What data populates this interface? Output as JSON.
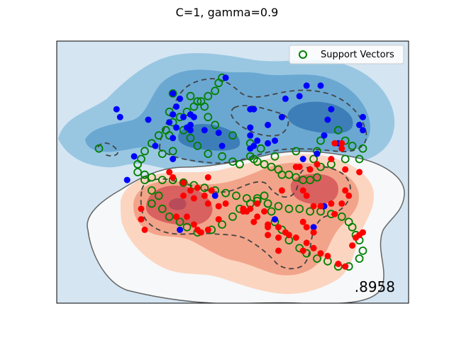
{
  "chart_data": {
    "type": "scatter",
    "title": "C=1, gamma=0.9",
    "score_text": ".8958",
    "legend": {
      "label": "Support Vectors",
      "position": "top-right"
    },
    "xlim": [
      0,
      100
    ],
    "ylim": [
      0,
      100
    ],
    "grid": false,
    "colors": {
      "class0": "#0000ff",
      "class1": "#ff0000",
      "support": "#007f00"
    },
    "series": [
      {
        "name": "class-blue",
        "points": [
          [
            48,
            86
          ],
          [
            33,
            80
          ],
          [
            34,
            75
          ],
          [
            35,
            78
          ],
          [
            33,
            72
          ],
          [
            17,
            74
          ],
          [
            18,
            71
          ],
          [
            26,
            70
          ],
          [
            32,
            69
          ],
          [
            36,
            71
          ],
          [
            38,
            72
          ],
          [
            39,
            71
          ],
          [
            38,
            68
          ],
          [
            34,
            67
          ],
          [
            33,
            63
          ],
          [
            37,
            67
          ],
          [
            38,
            66
          ],
          [
            42,
            66
          ],
          [
            46,
            65
          ],
          [
            47,
            60
          ],
          [
            55,
            74
          ],
          [
            56,
            74
          ],
          [
            55,
            67
          ],
          [
            55,
            64
          ],
          [
            55,
            59
          ],
          [
            56,
            60
          ],
          [
            57,
            62
          ],
          [
            60,
            61
          ],
          [
            62,
            62
          ],
          [
            60,
            68
          ],
          [
            64,
            71
          ],
          [
            65,
            78
          ],
          [
            69,
            79
          ],
          [
            71,
            83
          ],
          [
            75,
            83
          ],
          [
            78,
            74
          ],
          [
            77,
            70
          ],
          [
            76,
            64
          ],
          [
            70,
            55
          ],
          [
            74,
            57
          ],
          [
            80,
            61
          ],
          [
            87,
            66
          ],
          [
            86,
            68
          ],
          [
            87,
            71
          ],
          [
            22,
            56
          ],
          [
            28,
            60
          ],
          [
            33,
            55
          ],
          [
            20,
            47
          ],
          [
            45,
            41
          ],
          [
            35,
            28
          ],
          [
            62,
            32
          ],
          [
            73,
            29
          ],
          [
            76,
            37
          ]
        ]
      },
      {
        "name": "class-red",
        "points": [
          [
            43,
            48
          ],
          [
            32,
            50
          ],
          [
            33,
            48
          ],
          [
            36,
            46
          ],
          [
            40,
            44
          ],
          [
            38,
            43
          ],
          [
            36,
            41
          ],
          [
            39,
            40
          ],
          [
            42,
            41
          ],
          [
            44,
            43
          ],
          [
            43,
            38
          ],
          [
            46,
            37
          ],
          [
            48,
            38
          ],
          [
            55,
            36
          ],
          [
            57,
            38
          ],
          [
            59,
            35
          ],
          [
            53,
            35
          ],
          [
            56,
            31
          ],
          [
            60,
            30
          ],
          [
            60,
            26
          ],
          [
            63,
            25
          ],
          [
            66,
            26
          ],
          [
            63,
            20
          ],
          [
            70,
            43
          ],
          [
            71,
            41
          ],
          [
            73,
            37
          ],
          [
            75,
            37
          ],
          [
            78,
            38
          ],
          [
            79,
            34
          ],
          [
            70,
            31
          ],
          [
            71,
            29
          ],
          [
            73,
            27
          ],
          [
            64,
            43
          ],
          [
            68,
            52
          ],
          [
            69,
            52
          ],
          [
            72,
            51
          ],
          [
            74,
            53
          ],
          [
            78,
            55
          ],
          [
            79,
            61
          ],
          [
            81,
            61
          ],
          [
            81,
            59
          ],
          [
            86,
            50
          ],
          [
            82,
            51
          ],
          [
            82,
            43
          ],
          [
            81,
            38
          ],
          [
            83,
            41
          ],
          [
            24,
            36
          ],
          [
            24,
            32
          ],
          [
            25,
            28
          ],
          [
            34,
            33
          ],
          [
            37,
            33
          ],
          [
            39,
            30
          ],
          [
            40,
            28
          ],
          [
            41,
            27
          ],
          [
            43,
            28
          ],
          [
            46,
            32
          ],
          [
            53,
            36
          ],
          [
            54,
            35
          ],
          [
            57,
            33
          ],
          [
            60,
            29
          ],
          [
            63,
            29
          ],
          [
            65,
            27
          ],
          [
            68,
            25
          ],
          [
            70,
            20
          ],
          [
            71,
            23
          ],
          [
            73,
            21
          ],
          [
            75,
            19
          ],
          [
            77,
            18
          ],
          [
            80,
            15
          ],
          [
            82,
            14
          ],
          [
            84,
            22
          ],
          [
            85,
            25
          ],
          [
            86,
            26
          ],
          [
            87,
            27
          ]
        ]
      }
    ],
    "support_vectors": [
      [
        47,
        86
      ],
      [
        33,
        80
      ],
      [
        32,
        73
      ],
      [
        36,
        66
      ],
      [
        32,
        64
      ],
      [
        38,
        63
      ],
      [
        40,
        60
      ],
      [
        33,
        58
      ],
      [
        30,
        57
      ],
      [
        43,
        57
      ],
      [
        47,
        56
      ],
      [
        50,
        54
      ],
      [
        52,
        53
      ],
      [
        55,
        56
      ],
      [
        56,
        55
      ],
      [
        57,
        54
      ],
      [
        59,
        53
      ],
      [
        61,
        52
      ],
      [
        63,
        51
      ],
      [
        64,
        49
      ],
      [
        66,
        49
      ],
      [
        68,
        48
      ],
      [
        70,
        47
      ],
      [
        72,
        47
      ],
      [
        74,
        48
      ],
      [
        75,
        52
      ],
      [
        74,
        58
      ],
      [
        75,
        62
      ],
      [
        80,
        66
      ],
      [
        82,
        62
      ],
      [
        84,
        60
      ],
      [
        87,
        59
      ],
      [
        86,
        55
      ],
      [
        82,
        55
      ],
      [
        78,
        53
      ],
      [
        73,
        55
      ],
      [
        68,
        58
      ],
      [
        62,
        56
      ],
      [
        58,
        59
      ],
      [
        55,
        61
      ],
      [
        50,
        64
      ],
      [
        45,
        68
      ],
      [
        43,
        71
      ],
      [
        42,
        75
      ],
      [
        40,
        77
      ],
      [
        38,
        79
      ],
      [
        12,
        59
      ],
      [
        25,
        47
      ],
      [
        27,
        43
      ],
      [
        29,
        41
      ],
      [
        27,
        38
      ],
      [
        30,
        36
      ],
      [
        32,
        33
      ],
      [
        35,
        31
      ],
      [
        37,
        29
      ],
      [
        40,
        27
      ],
      [
        44,
        28
      ],
      [
        47,
        30
      ],
      [
        50,
        33
      ],
      [
        52,
        36
      ],
      [
        55,
        38
      ],
      [
        57,
        40
      ],
      [
        59,
        41
      ],
      [
        60,
        38
      ],
      [
        61,
        35
      ],
      [
        62,
        31
      ],
      [
        64,
        28
      ],
      [
        66,
        24
      ],
      [
        69,
        21
      ],
      [
        71,
        19
      ],
      [
        74,
        17
      ],
      [
        77,
        16
      ],
      [
        80,
        14
      ],
      [
        83,
        14
      ],
      [
        86,
        17
      ],
      [
        87,
        20
      ],
      [
        86,
        24
      ],
      [
        85,
        26
      ],
      [
        84,
        29
      ],
      [
        83,
        31
      ],
      [
        81,
        33
      ],
      [
        78,
        34
      ],
      [
        75,
        35
      ],
      [
        72,
        35
      ],
      [
        69,
        36
      ],
      [
        66,
        36
      ],
      [
        63,
        37
      ],
      [
        60,
        38
      ],
      [
        57,
        39
      ],
      [
        54,
        40
      ],
      [
        51,
        41
      ],
      [
        48,
        42
      ],
      [
        45,
        43
      ],
      [
        42,
        44
      ],
      [
        39,
        45
      ],
      [
        36,
        46
      ],
      [
        33,
        47
      ],
      [
        30,
        47
      ],
      [
        27,
        48
      ],
      [
        25,
        49
      ],
      [
        23,
        50
      ],
      [
        23,
        53
      ],
      [
        24,
        55
      ],
      [
        25,
        58
      ],
      [
        27,
        61
      ],
      [
        29,
        64
      ],
      [
        31,
        66
      ],
      [
        33,
        69
      ],
      [
        35,
        71
      ],
      [
        37,
        73
      ],
      [
        39,
        75
      ],
      [
        41,
        77
      ],
      [
        43,
        79
      ],
      [
        45,
        81
      ],
      [
        46,
        84
      ]
    ]
  }
}
